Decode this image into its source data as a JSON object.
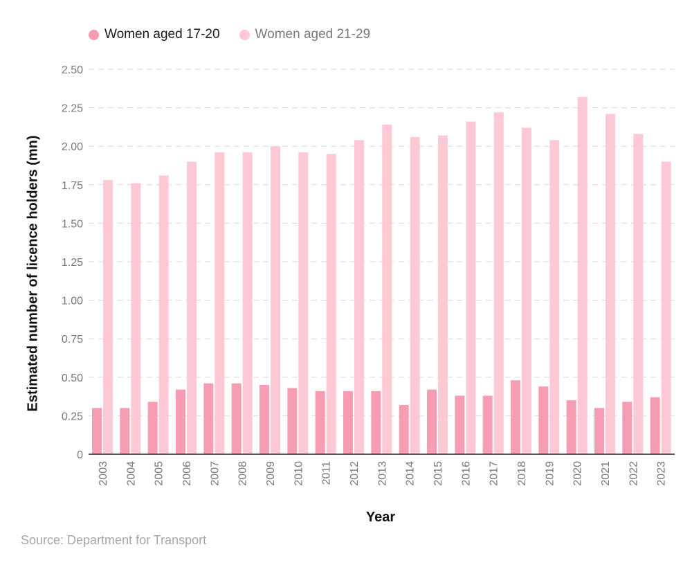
{
  "legend": {
    "series1": "Women aged 17-20",
    "series2": "Women aged 21-29"
  },
  "source": "Source: Department for Transport",
  "colors": {
    "series1": "#f79db3",
    "series2": "#fdc9d5",
    "grid": "#d9d9d9",
    "axis": "#222222",
    "tick": "#777777"
  },
  "chart_data": {
    "type": "bar",
    "title": "",
    "xlabel": "Year",
    "ylabel": "Estimated number of licence holders (mn)",
    "ylim": [
      0,
      2.5
    ],
    "yticks": [
      0,
      0.25,
      0.5,
      0.75,
      1.0,
      1.25,
      1.5,
      1.75,
      2.0,
      2.25,
      2.5
    ],
    "ytick_labels": [
      "0",
      "0.25",
      "0.50",
      "0.75",
      "1.00",
      "1.25",
      "1.50",
      "1.75",
      "2.00",
      "2.25",
      "2.50"
    ],
    "grid": true,
    "legend_position": "top-left",
    "categories": [
      "2003",
      "2004",
      "2005",
      "2006",
      "2007",
      "2008",
      "2009",
      "2010",
      "2011",
      "2012",
      "2013",
      "2014",
      "2015",
      "2016",
      "2017",
      "2018",
      "2019",
      "2020",
      "2021",
      "2022",
      "2023"
    ],
    "series": [
      {
        "name": "Women aged 17-20",
        "color": "#f79db3",
        "values": [
          0.3,
          0.3,
          0.34,
          0.42,
          0.46,
          0.46,
          0.45,
          0.43,
          0.41,
          0.41,
          0.41,
          0.32,
          0.42,
          0.38,
          0.38,
          0.48,
          0.44,
          0.35,
          0.3,
          0.34,
          0.37
        ]
      },
      {
        "name": "Women aged 21-29",
        "color": "#fdc9d5",
        "values": [
          1.78,
          1.76,
          1.81,
          1.9,
          1.96,
          1.96,
          2.0,
          1.96,
          1.95,
          2.04,
          2.14,
          2.06,
          2.07,
          2.16,
          2.22,
          2.12,
          2.04,
          2.32,
          2.21,
          2.08,
          1.9
        ]
      }
    ]
  }
}
